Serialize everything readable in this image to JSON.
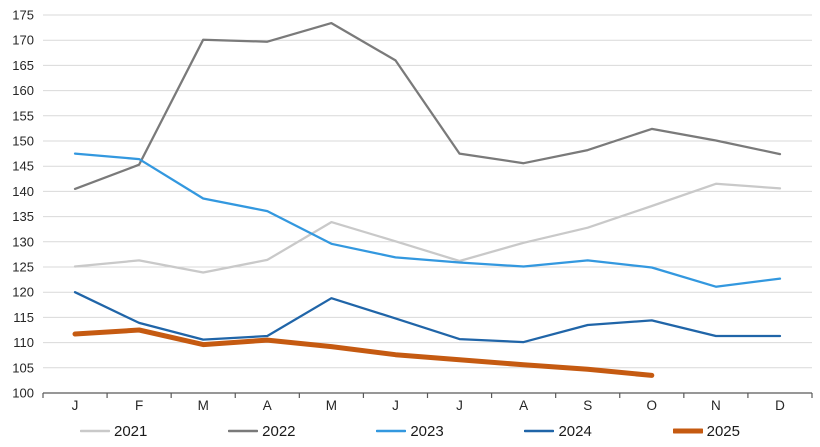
{
  "chart_data": {
    "type": "line",
    "title": "",
    "xlabel": "",
    "ylabel": "",
    "x_categories": [
      "J",
      "F",
      "M",
      "A",
      "M",
      "J",
      "J",
      "A",
      "S",
      "O",
      "N",
      "D"
    ],
    "ylim": [
      100,
      175
    ],
    "ytick_step": 5,
    "ytick_labels": [
      "100",
      "105",
      "110",
      "115",
      "120",
      "125",
      "130",
      "135",
      "140",
      "145",
      "150",
      "155",
      "160",
      "165",
      "170",
      "175"
    ],
    "grid": "horizontal-only",
    "legend_position": "bottom",
    "series": [
      {
        "name": "2021",
        "color": "#c9c9c9",
        "stroke_width": 2.25,
        "values": [
          125.1,
          126.3,
          123.9,
          126.4,
          133.9,
          130.1,
          126.2,
          129.8,
          132.8,
          137.1,
          141.5,
          140.6
        ]
      },
      {
        "name": "2022",
        "color": "#7a7a7a",
        "stroke_width": 2.25,
        "values": [
          140.5,
          145.3,
          170.1,
          169.7,
          173.4,
          166.0,
          147.5,
          145.6,
          148.2,
          152.4,
          150.1,
          147.4
        ]
      },
      {
        "name": "2023",
        "color": "#3398df",
        "stroke_width": 2.25,
        "values": [
          147.5,
          146.4,
          138.6,
          136.1,
          129.6,
          126.9,
          125.9,
          125.1,
          126.3,
          124.9,
          121.1,
          122.7
        ]
      },
      {
        "name": "2024",
        "color": "#2065a8",
        "stroke_width": 2.25,
        "values": [
          120.0,
          113.9,
          110.6,
          111.3,
          118.8,
          114.8,
          110.7,
          110.1,
          113.5,
          114.4,
          111.3,
          111.3
        ]
      },
      {
        "name": "2025",
        "color": "#c55a11",
        "stroke_width": 5,
        "values": [
          111.7,
          112.5,
          109.6,
          110.5,
          109.2,
          107.6,
          106.6,
          105.6,
          104.7,
          103.5
        ]
      }
    ]
  }
}
